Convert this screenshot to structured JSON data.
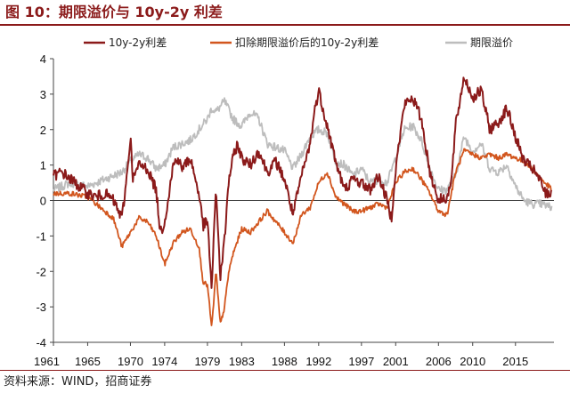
{
  "title": "图 10：期限溢价与 10y-2y 利差",
  "source": "资料来源：WIND，招商证券",
  "chart_data": {
    "type": "line",
    "title": "期限溢价与 10y-2y 利差",
    "xlabel": "",
    "ylabel": "",
    "xlim": [
      1961,
      2019.5
    ],
    "ylim": [
      -4,
      4
    ],
    "yticks": [
      4,
      3,
      2,
      1,
      0,
      -1,
      -2,
      -3,
      -4
    ],
    "xtick_labels": [
      "1961",
      "1965",
      "1970",
      "1974",
      "1979",
      "1983",
      "1988",
      "1992",
      "1997",
      "2001",
      "2006",
      "2010",
      "2015"
    ],
    "xtick_years": [
      1961,
      1965,
      1970,
      1974,
      1979,
      1983,
      1988,
      1992,
      1997,
      2001,
      2006,
      2010,
      2015
    ],
    "legend_position": "top",
    "series": [
      {
        "name": "10y-2y利差",
        "color": "#8b1a1a",
        "x": [
          1961,
          1962,
          1963,
          1964,
          1965,
          1966,
          1967,
          1968,
          1969,
          1969.5,
          1970,
          1970.3,
          1971,
          1972,
          1973,
          1973.5,
          1974,
          1975,
          1975.5,
          1976,
          1977,
          1978,
          1978.5,
          1979,
          1979.5,
          1980,
          1980.5,
          1981,
          1981.5,
          1982,
          1982.5,
          1983,
          1984,
          1985,
          1986,
          1987,
          1988,
          1989,
          1990,
          1991,
          1991.5,
          1992,
          1993,
          1994,
          1995,
          1996,
          1997,
          1998,
          1999,
          2000,
          2000.5,
          2001,
          2002,
          2003,
          2004,
          2005,
          2006,
          2007,
          2007.5,
          2008,
          2008.5,
          2009,
          2010,
          2011,
          2012,
          2013,
          2014,
          2015,
          2016,
          2017,
          2018,
          2018.5,
          2019.3
        ],
        "y": [
          0.7,
          0.8,
          0.6,
          0.4,
          0.2,
          0.1,
          0.2,
          0.0,
          -0.5,
          0.5,
          1.8,
          0.6,
          1.0,
          0.9,
          0.3,
          -0.9,
          -0.6,
          1.0,
          1.2,
          0.9,
          1.2,
          0.2,
          -0.7,
          -0.6,
          -2.5,
          0.4,
          -2.2,
          -1.1,
          0.6,
          1.2,
          1.6,
          1.2,
          1.0,
          1.4,
          0.8,
          1.1,
          0.6,
          -0.4,
          0.7,
          1.6,
          2.5,
          3.1,
          2.1,
          1.1,
          0.3,
          0.6,
          0.5,
          0.3,
          0.7,
          0.0,
          -0.5,
          0.9,
          2.7,
          2.9,
          2.3,
          0.8,
          0.0,
          0.1,
          0.5,
          2.1,
          2.8,
          3.5,
          2.9,
          3.1,
          2.0,
          2.2,
          2.6,
          1.8,
          1.1,
          0.9,
          0.5,
          0.2,
          0.2
        ]
      },
      {
        "name": "扣除期限溢价后的10y-2y利差",
        "color": "#d2561e",
        "x": [
          1961,
          1963,
          1965,
          1967,
          1968,
          1969,
          1970,
          1971,
          1972,
          1973,
          1974,
          1975,
          1976,
          1977,
          1978,
          1978.5,
          1979,
          1979.5,
          1980,
          1980.5,
          1981,
          1981.5,
          1982,
          1983,
          1984,
          1985,
          1986,
          1987,
          1988,
          1989,
          1990,
          1991,
          1992,
          1993,
          1994,
          1995,
          1996,
          1997,
          1998,
          1999,
          2000,
          2001,
          2002,
          2003,
          2004,
          2005,
          2006,
          2007,
          2008,
          2009,
          2010,
          2011,
          2012,
          2013,
          2014,
          2015,
          2016,
          2017,
          2018,
          2019.3
        ],
        "y": [
          0.2,
          0.2,
          0.1,
          -0.3,
          -0.5,
          -1.3,
          -0.9,
          -0.5,
          -0.6,
          -1.0,
          -1.8,
          -1.2,
          -0.9,
          -0.8,
          -1.3,
          -2.3,
          -2.4,
          -3.6,
          -2.0,
          -3.5,
          -3.0,
          -2.0,
          -1.5,
          -0.8,
          -0.9,
          -0.6,
          -0.3,
          -0.6,
          -0.9,
          -1.2,
          -0.4,
          -0.2,
          0.5,
          0.8,
          0.1,
          -0.1,
          -0.3,
          -0.3,
          -0.2,
          -0.1,
          -0.2,
          0.5,
          0.8,
          0.9,
          0.6,
          0.2,
          -0.3,
          -0.4,
          0.8,
          1.4,
          1.3,
          1.2,
          1.3,
          1.2,
          1.3,
          1.2,
          1.1,
          0.9,
          0.6,
          0.3
        ]
      },
      {
        "name": "期限溢价",
        "color": "#bdbdbd",
        "x": [
          1961,
          1963,
          1965,
          1967,
          1969,
          1970,
          1971,
          1972,
          1973,
          1974,
          1975,
          1976,
          1977,
          1978,
          1979,
          1979.5,
          1980,
          1981,
          1982,
          1983,
          1984,
          1985,
          1986,
          1987,
          1988,
          1989,
          1990,
          1991,
          1992,
          1993,
          1994,
          1995,
          1996,
          1997,
          1998,
          1999,
          2000,
          2001,
          2002,
          2003,
          2004,
          2005,
          2006,
          2007,
          2008,
          2009,
          2010,
          2011,
          2012,
          2013,
          2014,
          2015,
          2016,
          2017,
          2018,
          2019.3
        ],
        "y": [
          0.3,
          0.5,
          0.4,
          0.6,
          0.8,
          1.1,
          1.3,
          1.2,
          0.9,
          1.0,
          1.5,
          1.6,
          1.7,
          2.0,
          2.3,
          2.6,
          2.5,
          2.8,
          2.3,
          2.1,
          2.5,
          2.3,
          1.6,
          1.5,
          1.4,
          0.9,
          1.3,
          1.8,
          2.0,
          1.9,
          1.1,
          1.0,
          0.7,
          0.9,
          0.5,
          0.6,
          0.5,
          1.2,
          2.0,
          2.1,
          1.7,
          0.9,
          0.3,
          0.3,
          0.7,
          1.8,
          1.4,
          1.6,
          0.9,
          0.8,
          1.0,
          0.4,
          0.0,
          -0.1,
          -0.1,
          -0.2
        ]
      }
    ]
  }
}
